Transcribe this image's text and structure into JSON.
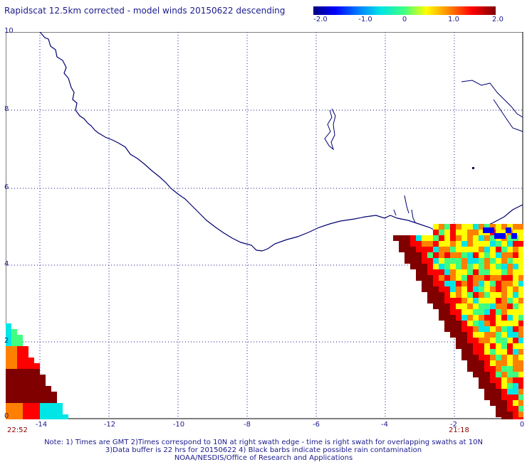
{
  "title": "Rapidscat 12.5km corrected - model winds 20150622 descending",
  "colorbar": {
    "labels": [
      "-2.0",
      "-1.0",
      "0",
      "1.0",
      "2.0"
    ],
    "colors": [
      "#000080",
      "#0000ff",
      "#00e5e5",
      "#40ff80",
      "#ffff00",
      "#ff8000",
      "#ff0000",
      "#800000"
    ]
  },
  "axes": {
    "x_ticks": [
      "-14",
      "-12",
      "-10",
      "-8",
      "-6",
      "-4",
      "-2",
      "0"
    ],
    "y_ticks": [
      "10",
      "8",
      "6",
      "4",
      "2",
      "0"
    ]
  },
  "swath_times": {
    "left": "22:52",
    "right": "21:18"
  },
  "notes": {
    "line1": "Note: 1) Times are GMT 2)Times correspond to 10N at right swath edge - time is right swath for overlapping swaths at 10N",
    "line2": "3)Data buffer is 22 hrs for 20150622 4) Black barbs indicate possible rain contamination",
    "line3": "NOAA/NESDIS/Office of Research and Applications"
  },
  "colors": {
    "text": "#1a1a8c",
    "coastline": "#000070",
    "time": "#8b0000"
  }
}
